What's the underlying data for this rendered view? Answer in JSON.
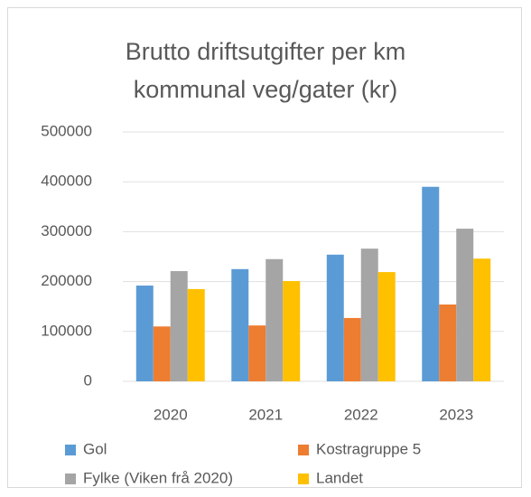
{
  "chart_data": {
    "type": "bar",
    "title": "Brutto driftsutgifter per km kommunal veg/gater (kr)",
    "categories": [
      "2020",
      "2021",
      "2022",
      "2023"
    ],
    "series": [
      {
        "name": "Gol",
        "color": "#5b9bd5",
        "values": [
          192000,
          225000,
          254000,
          390000
        ]
      },
      {
        "name": "Kostragruppe 5",
        "color": "#ed7d31",
        "values": [
          110000,
          112000,
          127000,
          154000
        ]
      },
      {
        "name": "Fylke (Viken frå 2020)",
        "color": "#a5a5a5",
        "values": [
          221000,
          245000,
          266000,
          306000
        ]
      },
      {
        "name": "Landet",
        "color": "#ffc000",
        "values": [
          185000,
          201000,
          219000,
          246000
        ]
      }
    ],
    "ylim": [
      0,
      500000
    ],
    "yticks": [
      0,
      100000,
      200000,
      300000,
      400000,
      500000
    ],
    "grid": true
  }
}
